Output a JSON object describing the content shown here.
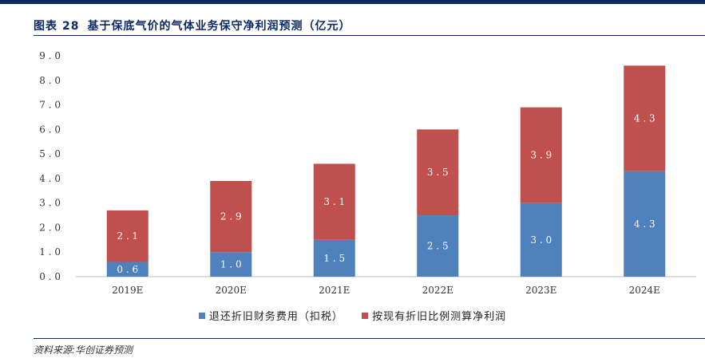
{
  "figure": {
    "label": "图表",
    "number": "28",
    "title": "基于保底气价的气体业务保守净利润预测（亿元）"
  },
  "source": "资料来源:华创证券预测",
  "colors": {
    "bottom": "#4f81bd",
    "top": "#c0504d",
    "rule": "#0d2a66"
  },
  "chart_data": {
    "type": "bar",
    "stacked": true,
    "categories": [
      "2019E",
      "2020E",
      "2021E",
      "2022E",
      "2023E",
      "2024E"
    ],
    "series": [
      {
        "name": "退还折旧财务费用（扣税）",
        "values": [
          0.6,
          1.0,
          1.5,
          2.5,
          3.0,
          4.3
        ],
        "labels": [
          "0.6",
          "1.0",
          "1.5",
          "2.5",
          "3.0",
          "4.3"
        ]
      },
      {
        "name": "按现有折旧比例测算净利润",
        "values": [
          2.1,
          2.9,
          3.1,
          3.5,
          3.9,
          4.3
        ],
        "labels": [
          "2.1",
          "2.9",
          "3.1",
          "3.5",
          "3.9",
          "4.3"
        ]
      }
    ],
    "yticks": [
      "0.0",
      "1.0",
      "2.0",
      "3.0",
      "4.0",
      "5.0",
      "6.0",
      "7.0",
      "8.0",
      "9.0"
    ],
    "ylim": [
      0,
      9
    ],
    "grid": false,
    "legend_position": "bottom"
  }
}
